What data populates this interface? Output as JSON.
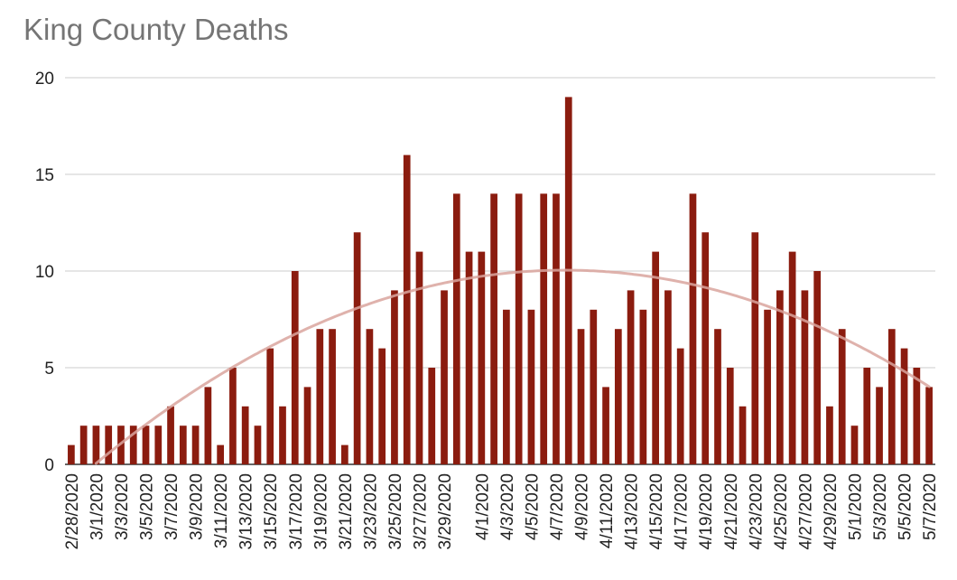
{
  "chart_data": {
    "type": "bar",
    "title": "King County Deaths",
    "xlabel": "",
    "ylabel": "",
    "ylim": [
      0,
      20
    ],
    "yticks": [
      0,
      5,
      10,
      15,
      20
    ],
    "grid": true,
    "bar_color": "#8b1c0f",
    "trendline": {
      "type": "polynomial",
      "color": "#d9a59d",
      "peak_value": 10
    },
    "categories": [
      "2/28/2020",
      "2/29/2020",
      "3/1/2020",
      "3/2/2020",
      "3/3/2020",
      "3/4/2020",
      "3/5/2020",
      "3/6/2020",
      "3/7/2020",
      "3/8/2020",
      "3/9/2020",
      "3/10/2020",
      "3/11/2020",
      "3/12/2020",
      "3/13/2020",
      "3/14/2020",
      "3/15/2020",
      "3/16/2020",
      "3/17/2020",
      "3/18/2020",
      "3/19/2020",
      "3/20/2020",
      "3/21/2020",
      "3/22/2020",
      "3/23/2020",
      "3/24/2020",
      "3/25/2020",
      "3/26/2020",
      "3/27/2020",
      "3/28/2020",
      "3/29/2020",
      "3/30/2020",
      "3/31/2020",
      "4/1/2020",
      "4/2/2020",
      "4/3/2020",
      "4/4/2020",
      "4/5/2020",
      "4/6/2020",
      "4/7/2020",
      "4/8/2020",
      "4/9/2020",
      "4/10/2020",
      "4/11/2020",
      "4/12/2020",
      "4/13/2020",
      "4/14/2020",
      "4/15/2020",
      "4/16/2020",
      "4/17/2020",
      "4/18/2020",
      "4/19/2020",
      "4/20/2020",
      "4/21/2020",
      "4/22/2020",
      "4/23/2020",
      "4/24/2020",
      "4/25/2020",
      "4/26/2020",
      "4/27/2020",
      "4/28/2020",
      "4/29/2020",
      "4/30/2020",
      "5/1/2020",
      "5/2/2020",
      "5/3/2020",
      "5/4/2020",
      "5/5/2020",
      "5/6/2020",
      "5/7/2020"
    ],
    "values": [
      1,
      2,
      2,
      2,
      2,
      2,
      2,
      2,
      3,
      2,
      2,
      4,
      1,
      5,
      3,
      2,
      6,
      3,
      10,
      4,
      7,
      7,
      1,
      12,
      7,
      6,
      9,
      16,
      11,
      5,
      9,
      14,
      11,
      11,
      14,
      8,
      14,
      8,
      14,
      14,
      19,
      7,
      8,
      4,
      7,
      9,
      8,
      11,
      9,
      6,
      14,
      12,
      7,
      5,
      3,
      12,
      8,
      9,
      11,
      9,
      10,
      3,
      7,
      2,
      5,
      4,
      7,
      6,
      5,
      4
    ],
    "tick_labels": [
      "2/28/2020",
      "3/1/2020",
      "3/3/2020",
      "3/5/2020",
      "3/7/2020",
      "3/9/2020",
      "3/11/2020",
      "3/13/2020",
      "3/15/2020",
      "3/17/2020",
      "3/19/2020",
      "3/21/2020",
      "3/23/2020",
      "3/25/2020",
      "3/27/2020",
      "3/29/2020",
      "4/1/2020",
      "4/3/2020",
      "4/5/2020",
      "4/7/2020",
      "4/9/2020",
      "4/11/2020",
      "4/13/2020",
      "4/15/2020",
      "4/17/2020",
      "4/19/2020",
      "4/21/2020",
      "4/23/2020",
      "4/25/2020",
      "4/27/2020",
      "4/29/2020",
      "5/1/2020",
      "5/3/2020",
      "5/5/2020",
      "5/7/2020"
    ]
  }
}
